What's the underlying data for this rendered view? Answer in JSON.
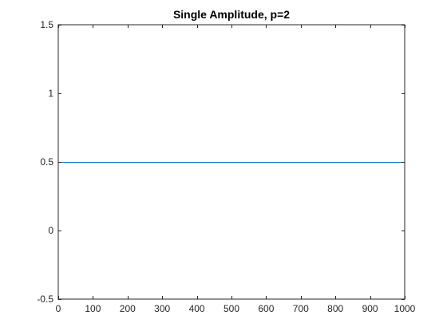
{
  "chart_data": {
    "type": "line",
    "title": "Single Amplitude, p=2",
    "xlabel": "",
    "ylabel": "",
    "xlim": [
      0,
      1000
    ],
    "ylim": [
      -0.5,
      1.5
    ],
    "xticks": [
      0,
      100,
      200,
      300,
      400,
      500,
      600,
      700,
      800,
      900,
      1000
    ],
    "xtick_labels": [
      "0",
      "100",
      "200",
      "300",
      "400",
      "500",
      "600",
      "700",
      "800",
      "900",
      "1000"
    ],
    "yticks": [
      -0.5,
      0,
      0.5,
      1,
      1.5
    ],
    "ytick_labels": [
      "-0.5",
      "0",
      "0.5",
      "1",
      "1.5"
    ],
    "grid": false,
    "legend": "none",
    "series": [
      {
        "color": "#0072BD",
        "x": [
          0,
          1000
        ],
        "y": [
          0.5,
          0.5
        ]
      }
    ]
  }
}
